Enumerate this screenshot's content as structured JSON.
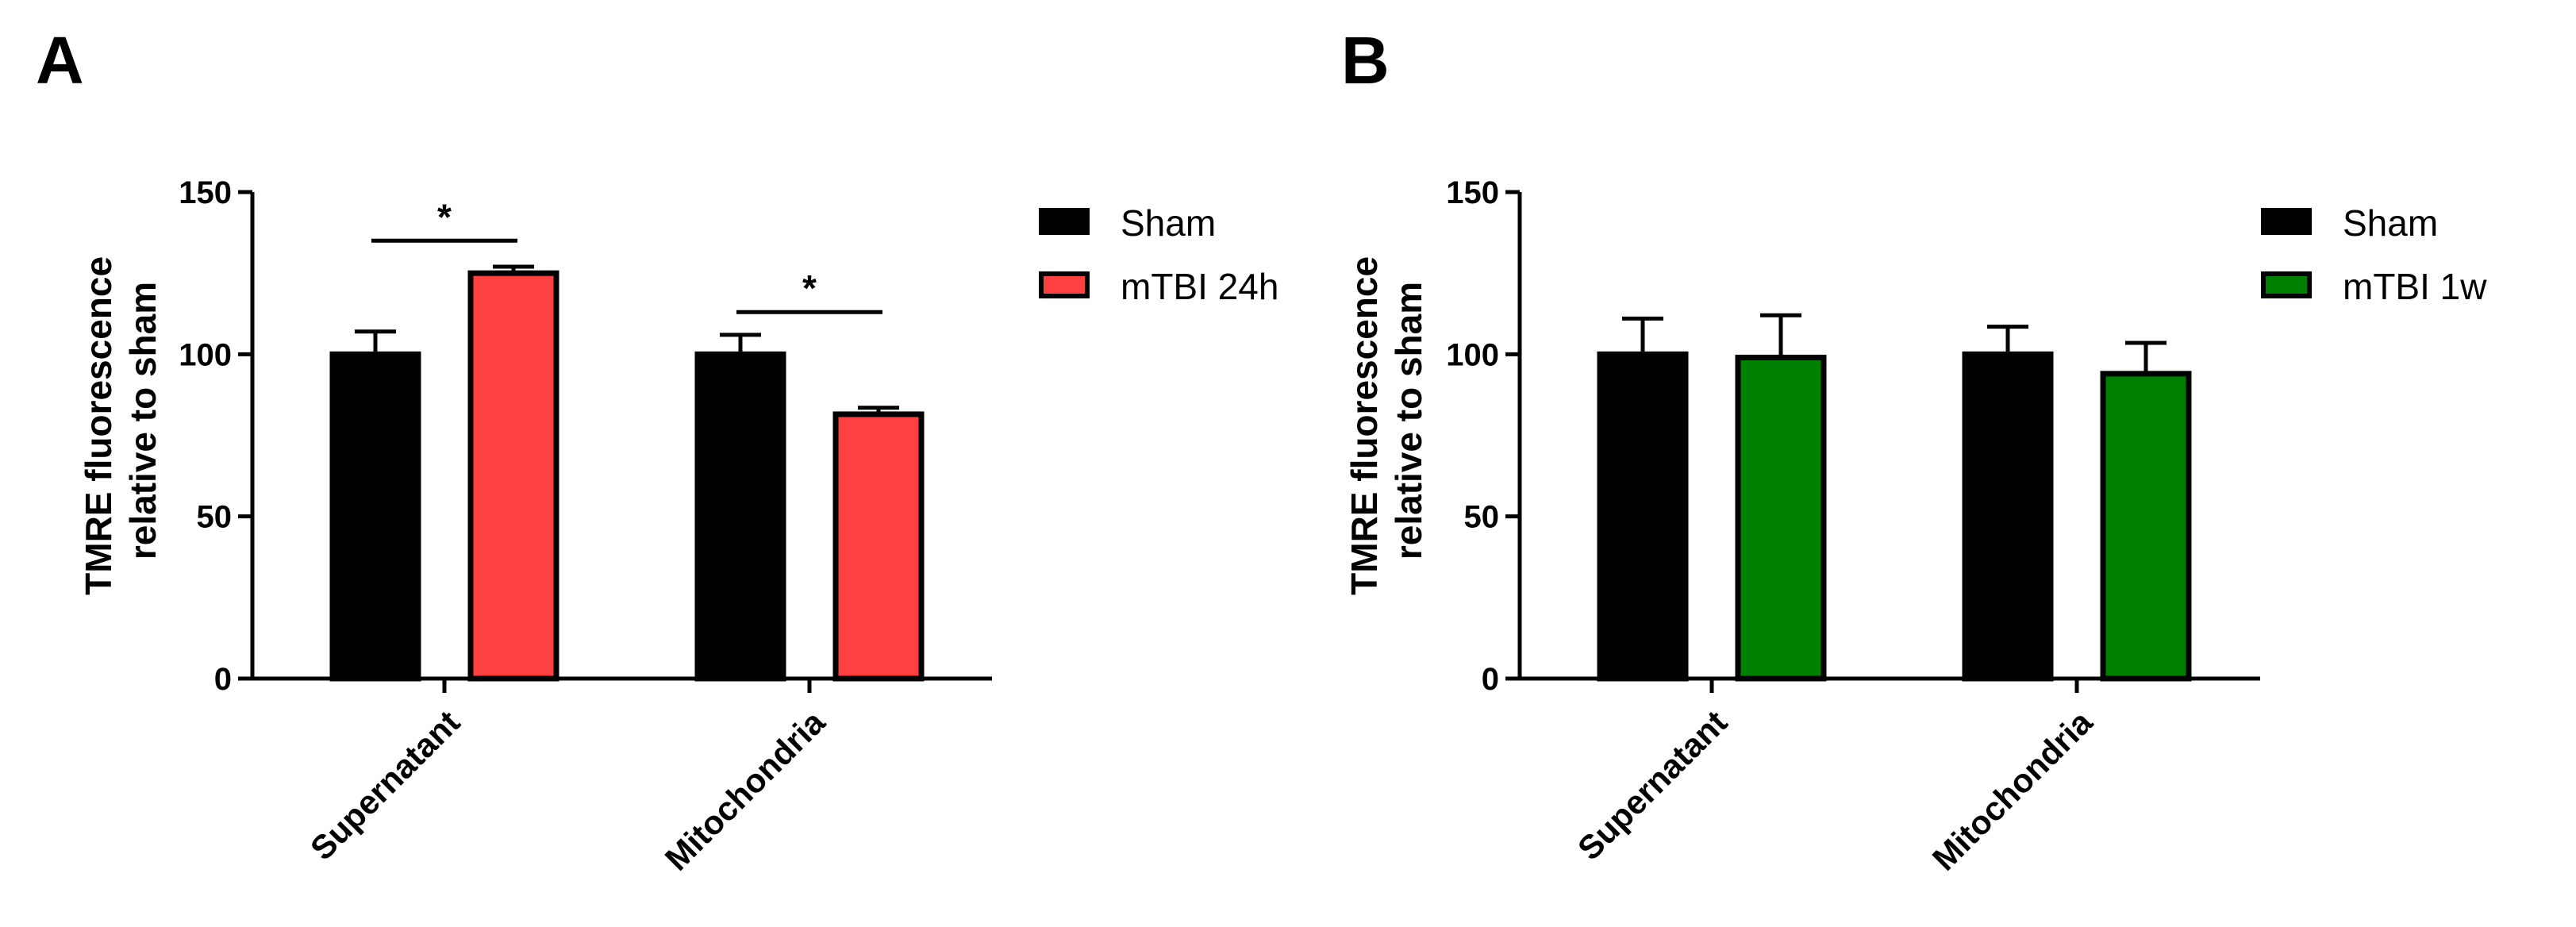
{
  "chart_data": [
    {
      "type": "bar",
      "panel_label": "A",
      "title": "",
      "xlabel": "",
      "ylabel_lines": [
        "TMRE fluorescence",
        "relative to sham"
      ],
      "ylim": [
        0,
        150
      ],
      "yticks": [
        0,
        50,
        100,
        150
      ],
      "categories": [
        "Supernatant",
        "Mitochondria"
      ],
      "series": [
        {
          "name": "Sham",
          "color": "#000000",
          "values": [
            100,
            100
          ],
          "errors": [
            7,
            6
          ]
        },
        {
          "name": "mTBI 24h",
          "color": "#ff4040",
          "values": [
            125,
            81.5
          ],
          "errors": [
            2,
            2
          ]
        }
      ],
      "significance": [
        {
          "category": "Supernatant",
          "label": "*",
          "level": 135
        },
        {
          "category": "Mitochondria",
          "label": "*",
          "level": 113
        }
      ],
      "legend_position": "right"
    },
    {
      "type": "bar",
      "panel_label": "B",
      "title": "",
      "xlabel": "",
      "ylabel_lines": [
        "TMRE fluorescence",
        "relative to sham"
      ],
      "ylim": [
        0,
        150
      ],
      "yticks": [
        0,
        50,
        100,
        150
      ],
      "categories": [
        "Supernatant",
        "Mitochondria"
      ],
      "series": [
        {
          "name": "Sham",
          "color": "#000000",
          "values": [
            100,
            100
          ],
          "errors": [
            11,
            8.5
          ]
        },
        {
          "name": "mTBI 1w",
          "color": "#008000",
          "values": [
            99,
            94
          ],
          "errors": [
            13,
            9.5
          ]
        }
      ],
      "significance": [],
      "legend_position": "right"
    }
  ]
}
